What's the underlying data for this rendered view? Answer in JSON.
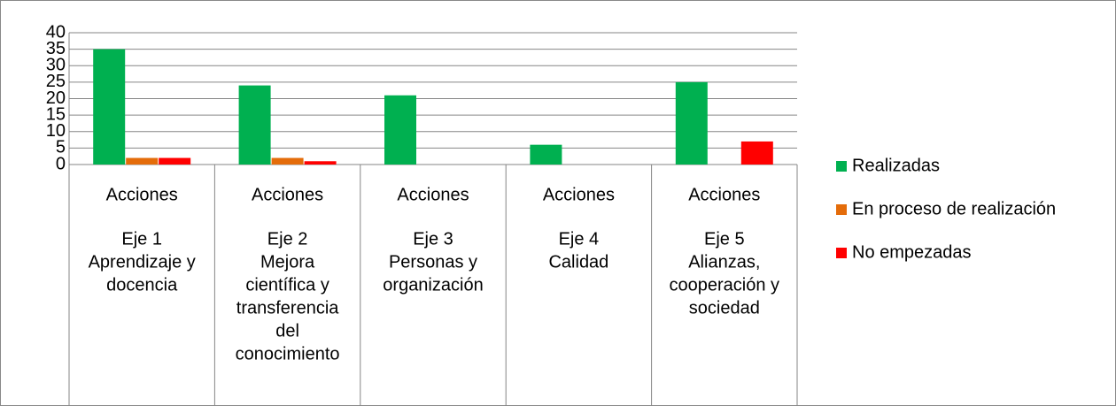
{
  "chart_data": {
    "type": "bar",
    "categories": [
      [
        "Acciones",
        "Eje 1",
        "Aprendizaje y",
        "docencia"
      ],
      [
        "Acciones",
        "Eje 2",
        "Mejora",
        "científica y",
        "transferencia",
        "del",
        "conocimiento"
      ],
      [
        "Acciones",
        "Eje 3",
        "Personas y",
        "organización"
      ],
      [
        "Acciones",
        "Eje 4",
        "Calidad"
      ],
      [
        "Acciones",
        "Eje 5",
        "Alianzas,",
        "cooperación y",
        "sociedad"
      ]
    ],
    "series": [
      {
        "name": "Realizadas",
        "color": "#00b050",
        "values": [
          35,
          24,
          21,
          6,
          25
        ]
      },
      {
        "name": "En proceso de realización",
        "color": "#e46c0a",
        "values": [
          2,
          2,
          0,
          0,
          0
        ]
      },
      {
        "name": "No empezadas",
        "color": "#ff0000",
        "values": [
          2,
          1,
          0,
          0,
          7
        ]
      }
    ],
    "ylim": [
      0,
      40
    ],
    "yticks": [
      0,
      5,
      10,
      15,
      20,
      25,
      30,
      35,
      40
    ],
    "grid": true,
    "legend": "right"
  }
}
